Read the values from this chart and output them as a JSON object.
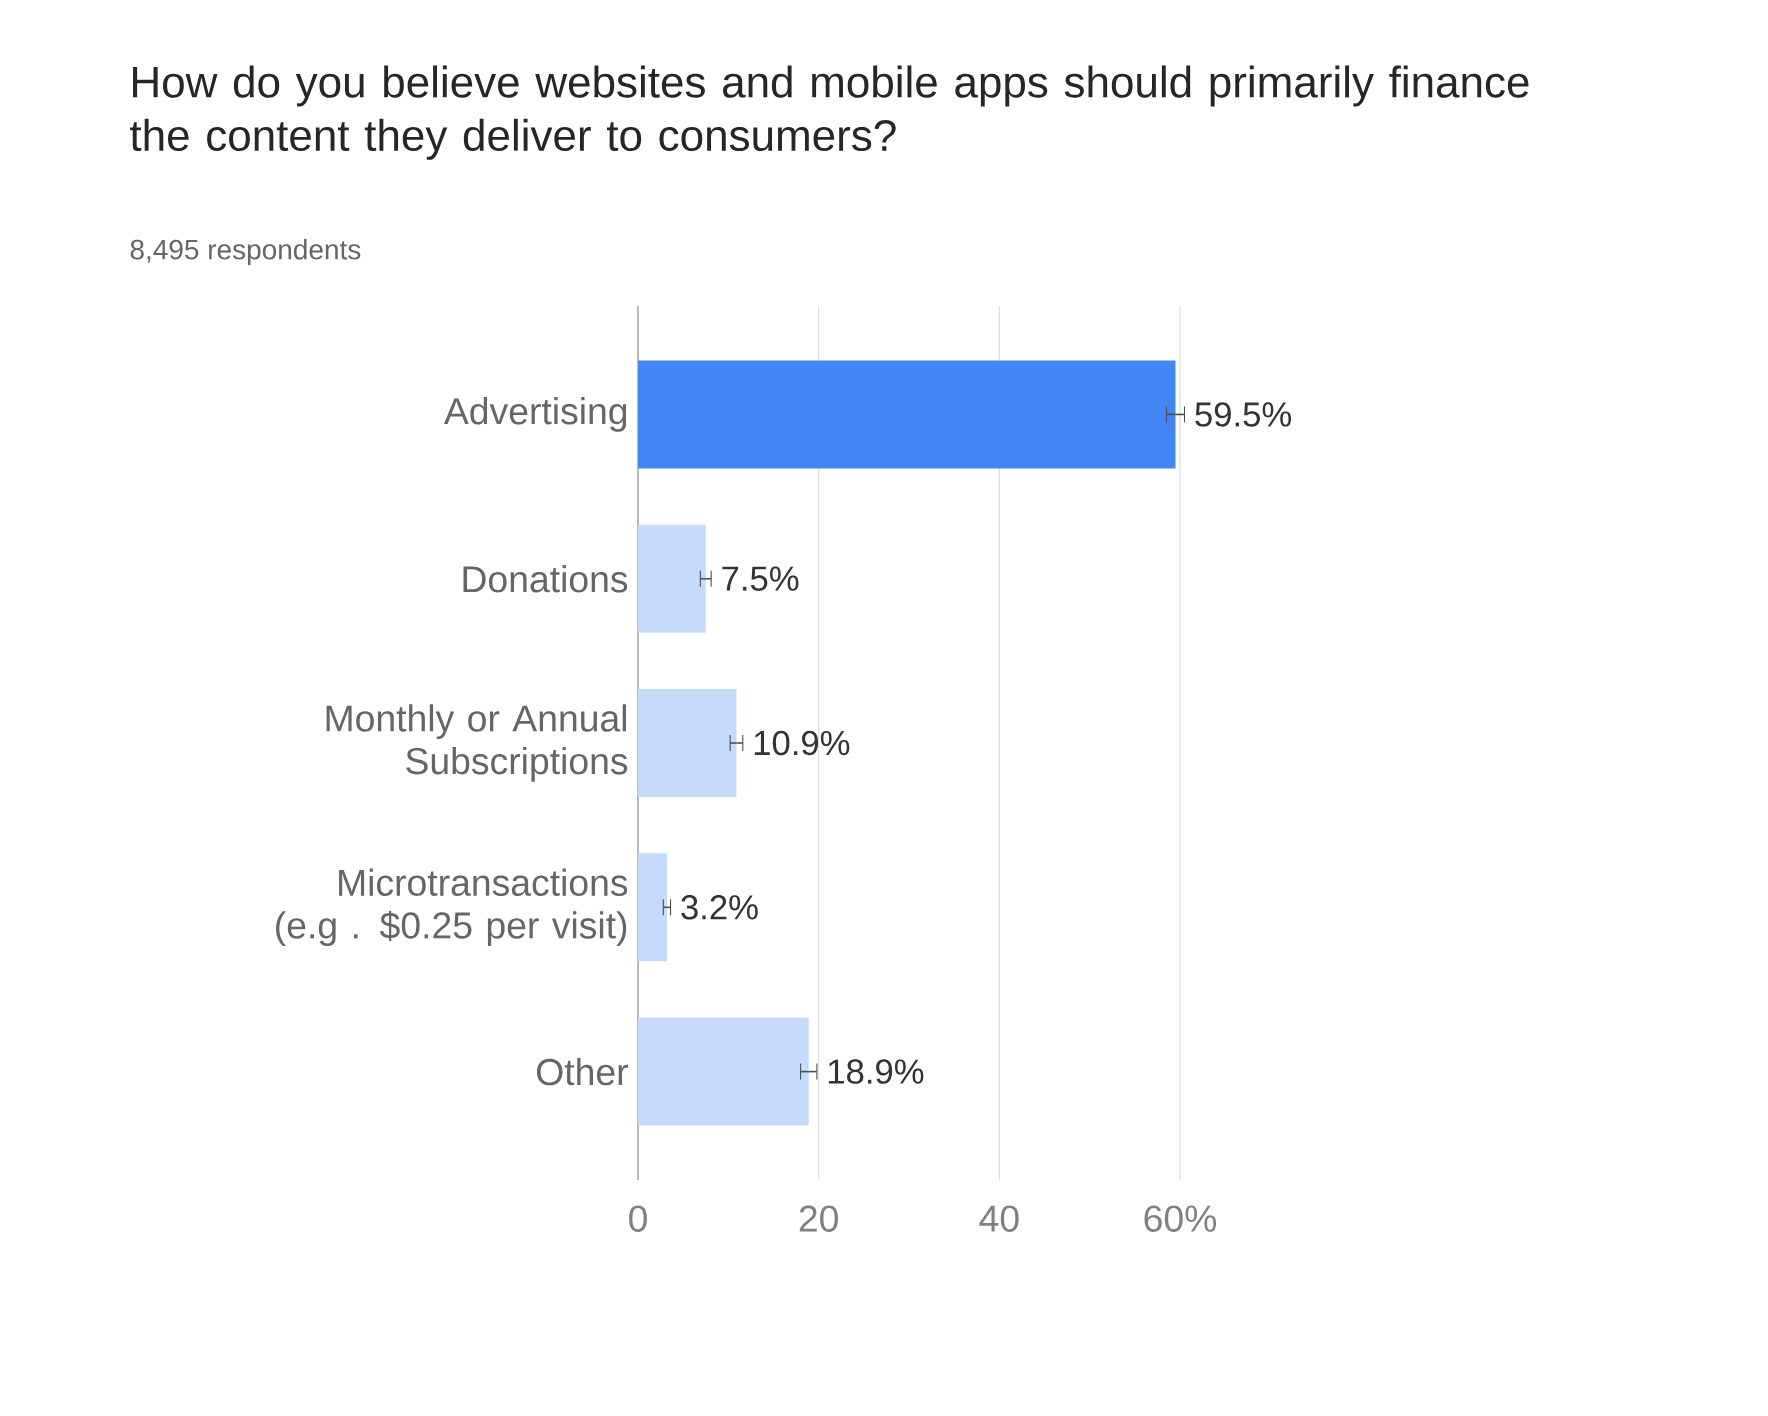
{
  "chart_data": {
    "type": "bar",
    "orientation": "horizontal",
    "title": "How do you believe websites and mobile apps should primarily finance the content they deliver to consumers?",
    "subtitle": "8,495 respondents",
    "categories": [
      "Advertising",
      "Donations",
      "Monthly or Annual Subscriptions",
      "Microtransactions (e.g . $0.25 per visit)",
      "Other"
    ],
    "values": [
      59.5,
      7.5,
      10.9,
      3.2,
      18.9
    ],
    "errors": [
      1.0,
      0.6,
      0.7,
      0.4,
      0.9
    ],
    "value_labels": [
      "59.5%",
      "7.5%",
      "10.9%",
      "3.2%",
      "18.9%"
    ],
    "colors": [
      "#4285f4",
      "#c6dafc",
      "#c6dafc",
      "#c6dafc",
      "#c6dafc"
    ],
    "xlim": [
      0,
      60
    ],
    "xticks": [
      0,
      20,
      40,
      {
        "value": 60,
        "label": "60%"
      }
    ],
    "grid": "x"
  }
}
